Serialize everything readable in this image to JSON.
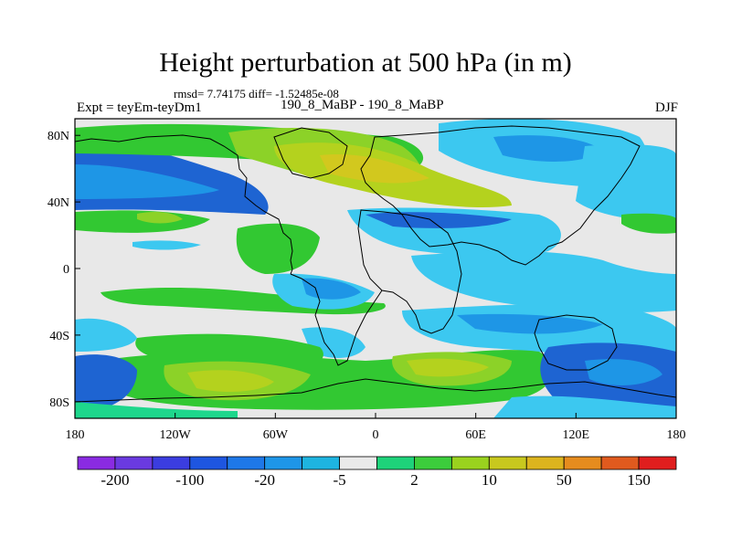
{
  "title": "Height perturbation at 500 hPa (in m)",
  "stats": "rmsd= 7.74175 diff= -1.52485e-08",
  "experiment": "Expt = teyEm-teyDm1",
  "case": "190_8_MaBP - 190_8_MaBP",
  "season": "DJF",
  "axes": {
    "x_ticks": [
      "180",
      "120W",
      "60W",
      "0",
      "60E",
      "120E",
      "180"
    ],
    "y_ticks": [
      "80N",
      "40N",
      "0",
      "40S",
      "80S"
    ]
  },
  "colorbar": {
    "colors": [
      "#8a2be2",
      "#6a3ae0",
      "#3b3de0",
      "#1e56e0",
      "#1e78e8",
      "#1e96e8",
      "#1eb4e0",
      "#eaeaea",
      "#1ed27a",
      "#3ccd3c",
      "#9ad21e",
      "#c8c81e",
      "#dcb41e",
      "#e68c1e",
      "#e05a1e",
      "#e01e1e"
    ],
    "labels": [
      "-200",
      "-100",
      "-20",
      "-5",
      "2",
      "10",
      "50",
      "150"
    ]
  },
  "field_colors": {
    "background": "#e8e8e8",
    "light_blue": "#3cc8f0",
    "mid_blue": "#1e96e6",
    "blue": "#1e64d2",
    "cyan": "#14d2dc",
    "green": "#32c832",
    "light_green": "#8cd228",
    "yellow_green": "#b4d21e",
    "yellow": "#d2c81e",
    "seafoam": "#1ed78c"
  }
}
